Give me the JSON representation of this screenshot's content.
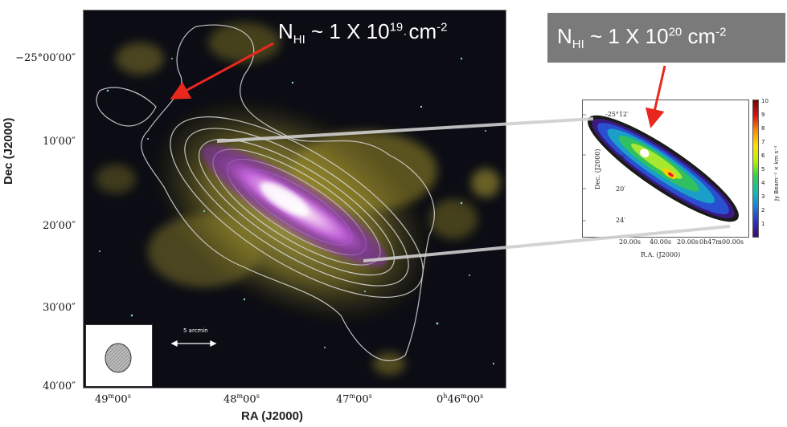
{
  "main_panel": {
    "y_axis_label": "Dec (J2000)",
    "x_axis_label": "RA (J2000)",
    "dec_ticks": [
      {
        "d": "−25°",
        "m": "00′",
        "s": "00″"
      },
      {
        "d": "",
        "m": "10′",
        "s": "00″"
      },
      {
        "d": "",
        "m": "20′",
        "s": "00″"
      },
      {
        "d": "",
        "m": "30′",
        "s": "00″"
      },
      {
        "d": "",
        "m": "40′",
        "s": "00″"
      }
    ],
    "ra_ticks": [
      {
        "h": "",
        "m": "49",
        "s": "00"
      },
      {
        "h": "",
        "m": "48",
        "s": "00"
      },
      {
        "h": "",
        "m": "47",
        "s": "00"
      },
      {
        "h": "0",
        "m": "46",
        "s": "00"
      }
    ],
    "scale_bar_label": "5 arcmin"
  },
  "annotations": {
    "left": {
      "prefix": "N",
      "sub": "HI",
      "middle": " ~ 1 X 10",
      "exp": "19",
      "unit": " cm",
      "unit_exp": "-2"
    },
    "right": {
      "prefix": "N",
      "sub": "HI",
      "middle": " ~ 1 X 10",
      "exp": "20",
      "unit": " cm",
      "unit_exp": "-2"
    }
  },
  "inset": {
    "y_axis_label": "Dec. (J2000)",
    "x_axis_label": "R.A. (J2000)",
    "dec_ticks": [
      "-25°12′",
      "16′",
      "20′",
      "24′"
    ],
    "ra_ticks": [
      "20.00s",
      "40.00s",
      "20.00s",
      "0h47m00.00s"
    ],
    "colorbar_title": "Jy Beam⁻¹ × km s⁻¹",
    "colorbar_ticks": [
      "10",
      "9",
      "8",
      "7",
      "6",
      "5",
      "4",
      "3",
      "2",
      "1"
    ]
  },
  "colors": {
    "arrow": "#e8281e",
    "contour": "#d8d8d8",
    "hi_glow": "#c8c04a",
    "galaxy": "#c060e0",
    "annotation_box": "#7a7a7a"
  }
}
